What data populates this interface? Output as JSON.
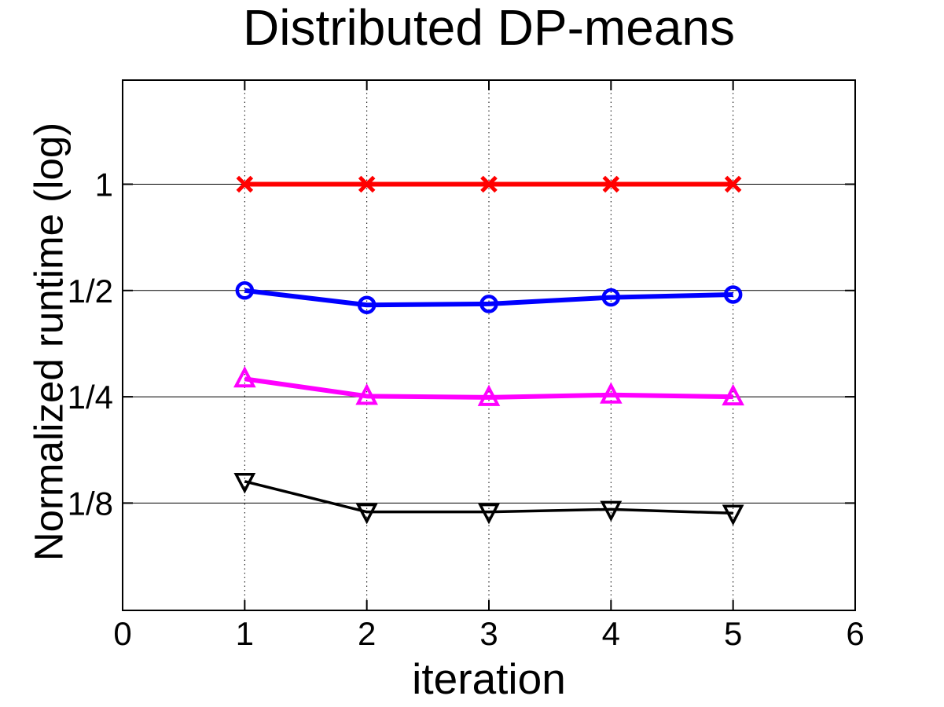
{
  "chart_data": {
    "type": "line",
    "title": "Distributed DP-means",
    "xlabel": "iteration",
    "ylabel": "Normalized runtime (log)",
    "xlim": [
      0,
      6
    ],
    "ylim": [
      0.0625,
      2
    ],
    "yscale": "log2",
    "xticks": [
      {
        "label": "0",
        "value": 0
      },
      {
        "label": "1",
        "value": 1
      },
      {
        "label": "2",
        "value": 2
      },
      {
        "label": "3",
        "value": 3
      },
      {
        "label": "4",
        "value": 4
      },
      {
        "label": "5",
        "value": 5
      },
      {
        "label": "6",
        "value": 6
      }
    ],
    "yticks": [
      {
        "label": "1",
        "value": 1
      },
      {
        "label": "1/2",
        "value": 0.5
      },
      {
        "label": "1/4",
        "value": 0.25
      },
      {
        "label": "1/8",
        "value": 0.125
      }
    ],
    "grid": {
      "horizontal_style": "solid",
      "vertical_style": "dotted",
      "vertical_at": [
        1,
        2,
        3,
        4,
        5
      ]
    },
    "legend": "none",
    "x": [
      1,
      2,
      3,
      4,
      5
    ],
    "series": [
      {
        "name": "red-x-series",
        "color": "#ff0000",
        "marker": "x",
        "line_width": 6,
        "values": [
          1,
          1,
          1,
          1,
          1
        ]
      },
      {
        "name": "blue-circle-series",
        "color": "#0000ff",
        "marker": "circle",
        "line_width": 6,
        "values": [
          0.5,
          0.455,
          0.458,
          0.478,
          0.487
        ]
      },
      {
        "name": "magenta-triangle-up-series",
        "color": "#ff00ff",
        "marker": "triangle-up",
        "line_width": 6,
        "values": [
          0.281,
          0.251,
          0.249,
          0.253,
          0.25
        ]
      },
      {
        "name": "black-triangle-down-series",
        "color": "#000000",
        "marker": "triangle-down",
        "line_width": 3.5,
        "values": [
          0.144,
          0.118,
          0.118,
          0.12,
          0.117
        ]
      }
    ]
  }
}
